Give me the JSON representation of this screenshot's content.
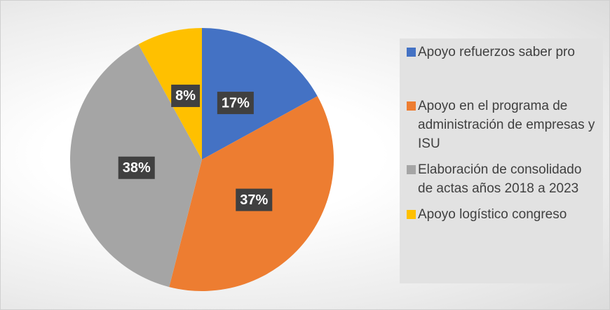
{
  "chart_data": {
    "type": "pie",
    "categories": [
      "Apoyo refuerzos saber pro",
      "Apoyo en el programa de administración de empresas y ISU",
      "Elaboración de consolidado de actas años 2018 a 2023",
      "Apoyo logístico congreso"
    ],
    "values": [
      17,
      37,
      38,
      8
    ],
    "value_labels": [
      "17%",
      "37%",
      "38%",
      "8%"
    ],
    "colors": [
      "#4472c4",
      "#ed7d31",
      "#a5a5a5",
      "#ffc000"
    ],
    "legend": "right"
  }
}
